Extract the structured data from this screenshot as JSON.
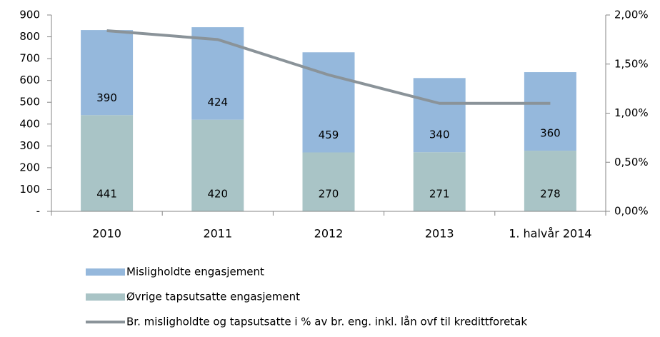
{
  "chart_data": {
    "type": "bar",
    "categories": [
      "2010",
      "2011",
      "2012",
      "2013",
      "1. halvår 2014"
    ],
    "stacked": true,
    "series": [
      {
        "name": "Misligholdte engasjement",
        "color": "#95b8dc",
        "values": [
          390,
          424,
          459,
          340,
          360
        ],
        "stack_order": 1
      },
      {
        "name": "Øvrige tapsutsatte engasjement",
        "color": "#a9c4c6",
        "values": [
          441,
          420,
          270,
          271,
          278
        ],
        "stack_order": 0
      },
      {
        "name": "Br. misligholdte og tapsutsatte i % av br. eng. inkl. lån ovf til kredittforetak",
        "color": "#8a9399",
        "type": "line",
        "axis": "y2",
        "values": [
          1.84,
          1.75,
          1.39,
          1.1,
          1.1
        ]
      }
    ],
    "ylim": [
      0,
      900
    ],
    "yticks": [
      {
        "value": 0,
        "label": "-"
      },
      100,
      200,
      300,
      400,
      500,
      600,
      700,
      800,
      900
    ],
    "y2lim": [
      0,
      2
    ],
    "y2ticks": [
      {
        "value": 0,
        "label": "0,00%"
      },
      {
        "value": 0.5,
        "label": "0,50%"
      },
      {
        "value": 1,
        "label": "1,00%"
      },
      {
        "value": 1.5,
        "label": "1,50%"
      },
      {
        "value": 2,
        "label": "2,00%"
      }
    ],
    "grid": false
  }
}
